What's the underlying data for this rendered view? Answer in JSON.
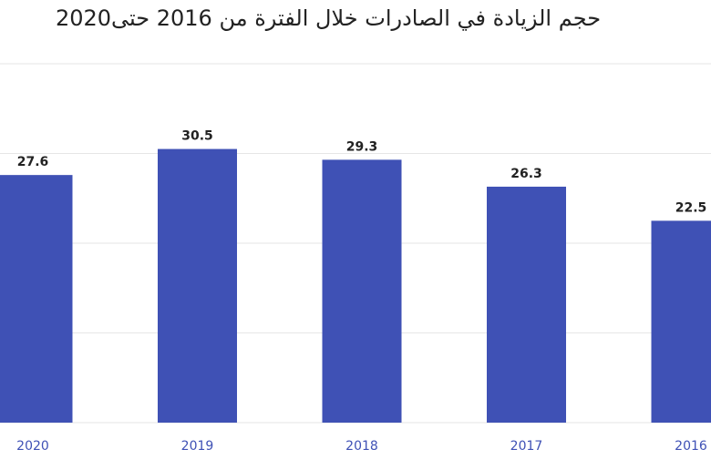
{
  "chart_data": {
    "type": "bar",
    "title": "حجم الزيادة في الصادرات خلال الفترة من 2016 حتى2020",
    "categories": [
      "2020",
      "2019",
      "2018",
      "2017",
      "2016"
    ],
    "values": [
      27.6,
      30.5,
      29.3,
      26.3,
      22.5
    ],
    "ylim": [
      0,
      40
    ],
    "grid": true,
    "bar_color": "#3f51b5",
    "tick_color": "#3f51b5",
    "label_color": "#222222",
    "grid_color": "#e6e6e6"
  }
}
